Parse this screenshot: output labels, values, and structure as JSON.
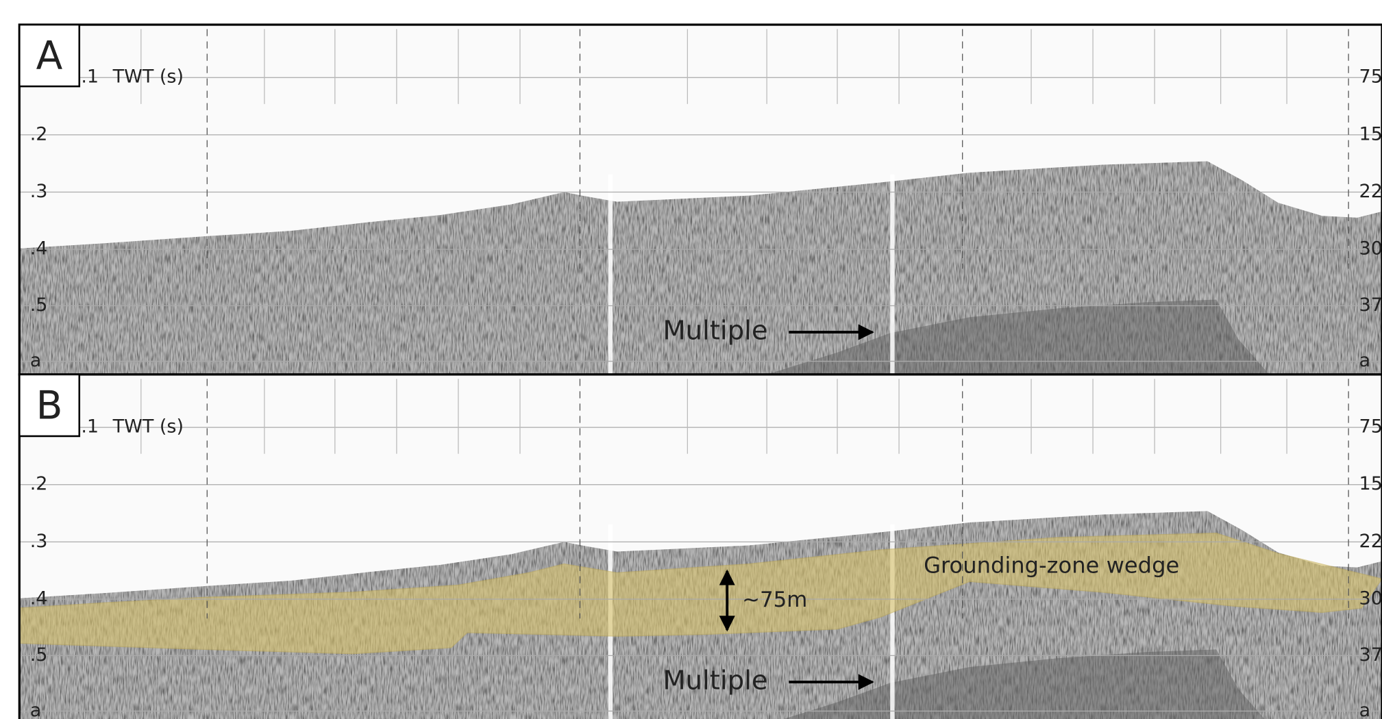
{
  "panels": [
    {
      "label": "A",
      "axis_title": "TWT (s)",
      "left_ticks": [
        ".1",
        ".2",
        ".3",
        ".4",
        ".5",
        "a"
      ],
      "right_ticks": [
        "75",
        "15",
        "22",
        "30",
        "37",
        "a"
      ],
      "annotations": {
        "multiple": "Multiple"
      }
    },
    {
      "label": "B",
      "axis_title": "TWT (s)",
      "left_ticks": [
        ".1",
        ".2",
        ".3",
        ".4",
        ".5",
        "a"
      ],
      "right_ticks": [
        "75",
        "15",
        "22",
        "30",
        "37",
        "a"
      ],
      "annotations": {
        "multiple": "Multiple",
        "wedge": "Grounding-zone wedge",
        "thickness": "~75m"
      }
    }
  ]
}
